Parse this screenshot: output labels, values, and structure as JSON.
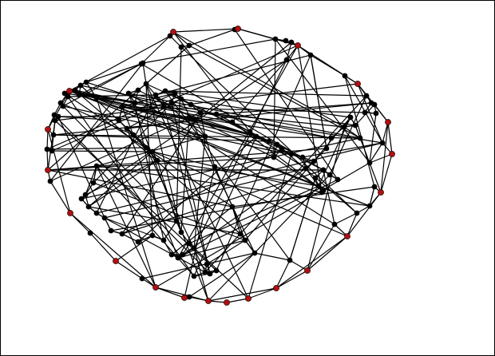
{
  "colors": {
    "background": "#ffffff",
    "edge": "#000000",
    "interior_node": "#000000",
    "boundary_node": "#b01010"
  }
}
